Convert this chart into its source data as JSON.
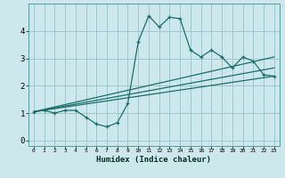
{
  "xlabel": "Humidex (Indice chaleur)",
  "bg_color": "#cde8ec",
  "grid_color": "#9dc8ce",
  "line_color": "#1a6e6a",
  "xlim": [
    -0.5,
    23.5
  ],
  "ylim": [
    -0.2,
    5.0
  ],
  "xticks": [
    0,
    1,
    2,
    3,
    4,
    5,
    6,
    7,
    8,
    9,
    10,
    11,
    12,
    13,
    14,
    15,
    16,
    17,
    18,
    19,
    20,
    21,
    22,
    23
  ],
  "yticks": [
    0,
    1,
    2,
    3,
    4
  ],
  "series": [
    [
      0,
      1.05
    ],
    [
      1,
      1.1
    ],
    [
      2,
      1.0
    ],
    [
      3,
      1.1
    ],
    [
      4,
      1.1
    ],
    [
      5,
      0.85
    ],
    [
      6,
      0.6
    ],
    [
      7,
      0.5
    ],
    [
      8,
      0.65
    ],
    [
      9,
      1.35
    ],
    [
      10,
      3.6
    ],
    [
      11,
      4.55
    ],
    [
      12,
      4.15
    ],
    [
      13,
      4.5
    ],
    [
      14,
      4.45
    ],
    [
      15,
      3.3
    ],
    [
      16,
      3.05
    ],
    [
      17,
      3.3
    ],
    [
      18,
      3.05
    ],
    [
      19,
      2.65
    ],
    [
      20,
      3.05
    ],
    [
      21,
      2.9
    ],
    [
      22,
      2.4
    ],
    [
      23,
      2.35
    ]
  ],
  "line2": [
    [
      0,
      1.05
    ],
    [
      23,
      2.35
    ]
  ],
  "line3": [
    [
      0,
      1.05
    ],
    [
      23,
      2.65
    ]
  ],
  "line4": [
    [
      0,
      1.05
    ],
    [
      23,
      3.05
    ]
  ]
}
